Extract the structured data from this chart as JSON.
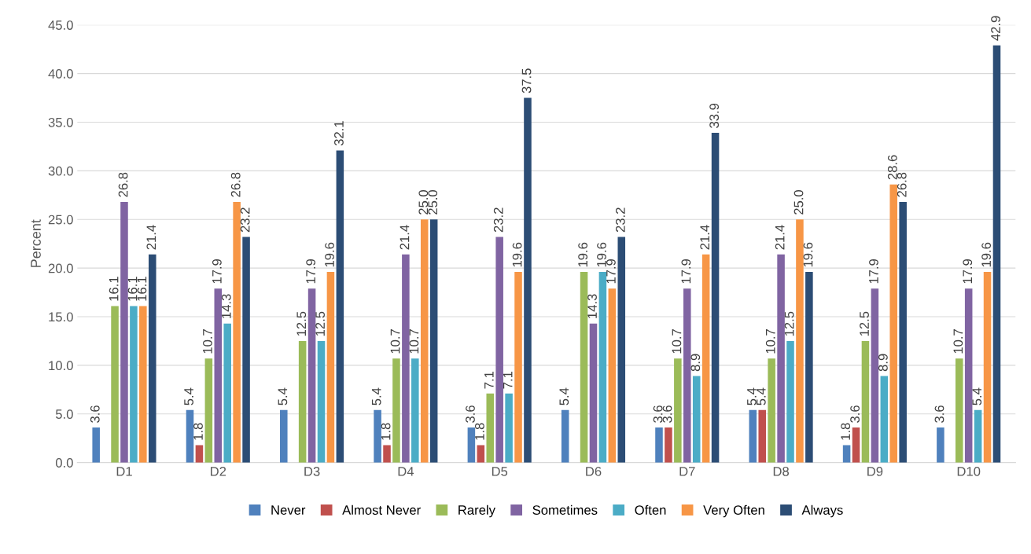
{
  "chart_data": {
    "type": "bar",
    "ylabel": "Percent",
    "categories": [
      "D1",
      "D2",
      "D3",
      "D4",
      "D5",
      "D6",
      "D7",
      "D8",
      "D9",
      "D10"
    ],
    "series": [
      {
        "name": "Never",
        "color": "#4f81bd",
        "values": [
          3.6,
          5.4,
          5.4,
          5.4,
          3.6,
          5.4,
          3.6,
          5.4,
          1.8,
          3.6
        ],
        "value_labels": [
          "3.6",
          "5.4",
          "5.4",
          "5.4",
          "3.6",
          "5.4",
          "3.6",
          "5.4",
          "1.8",
          "3.6"
        ]
      },
      {
        "name": "Almost Never",
        "color": "#c0504d",
        "values": [
          null,
          1.8,
          null,
          1.8,
          1.8,
          null,
          3.6,
          5.4,
          3.6,
          null
        ],
        "value_labels": [
          null,
          "1.8",
          null,
          "1.8",
          "1.8",
          null,
          "3.6",
          "5.4",
          "3.6",
          null
        ]
      },
      {
        "name": "Rarely",
        "color": "#9bbb59",
        "values": [
          16.1,
          10.7,
          12.5,
          10.7,
          7.1,
          19.6,
          10.7,
          10.7,
          12.5,
          10.7
        ],
        "value_labels": [
          "16.1",
          "10.7",
          "12.5",
          "10.7",
          "7.1",
          "19.6",
          "10.7",
          "10.7",
          "12.5",
          "10.7"
        ]
      },
      {
        "name": "Sometimes",
        "color": "#8064a2",
        "values": [
          26.8,
          17.9,
          17.9,
          21.4,
          23.2,
          14.3,
          17.9,
          21.4,
          17.9,
          17.9
        ],
        "value_labels": [
          "26.8",
          "17.9",
          "17.9",
          "21.4",
          "23.2",
          "14.3",
          "17.9",
          "21.4",
          "17.9",
          "17.9"
        ]
      },
      {
        "name": "Often",
        "color": "#4bacc6",
        "values": [
          16.1,
          14.3,
          12.5,
          10.7,
          7.1,
          19.6,
          8.9,
          12.5,
          8.9,
          5.4
        ],
        "value_labels": [
          "16.1",
          "14.3",
          "12.5",
          "10.7",
          "7.1",
          "19.6",
          "8.9",
          "12.5",
          "8.9",
          "5.4"
        ]
      },
      {
        "name": "Very Often",
        "color": "#f79646",
        "values": [
          16.1,
          26.8,
          19.6,
          25,
          19.6,
          17.9,
          21.4,
          25,
          28.6,
          19.6
        ],
        "value_labels": [
          "16.1",
          "26.8",
          "19.6",
          "25.0",
          "19.6",
          "17.9",
          "21.4",
          "25.0",
          "28.6",
          "19.6"
        ]
      },
      {
        "name": "Always",
        "color": "#2c4d75",
        "values": [
          21.4,
          23.2,
          32.1,
          25,
          37.5,
          23.2,
          33.9,
          19.6,
          26.8,
          42.9
        ],
        "value_labels": [
          "21.4",
          "23.2",
          "32.1",
          "25.0",
          "37.5",
          "23.2",
          "33.9",
          "19.6",
          "26.8",
          "42.9"
        ]
      }
    ],
    "ylim": [
      0,
      45
    ],
    "yticks": [
      {
        "value": 0,
        "label": "0.0"
      },
      {
        "value": 5,
        "label": "5.0"
      },
      {
        "value": 10,
        "label": "10.0"
      },
      {
        "value": 15,
        "label": "15.0"
      },
      {
        "value": 20,
        "label": "20.0"
      },
      {
        "value": 25,
        "label": "25.0"
      },
      {
        "value": 30,
        "label": "30.0"
      },
      {
        "value": 35,
        "label": "35.0"
      },
      {
        "value": 40,
        "label": "40.0"
      },
      {
        "value": 45,
        "label": "45.0"
      }
    ],
    "grid": "y",
    "legend": "bottom"
  }
}
